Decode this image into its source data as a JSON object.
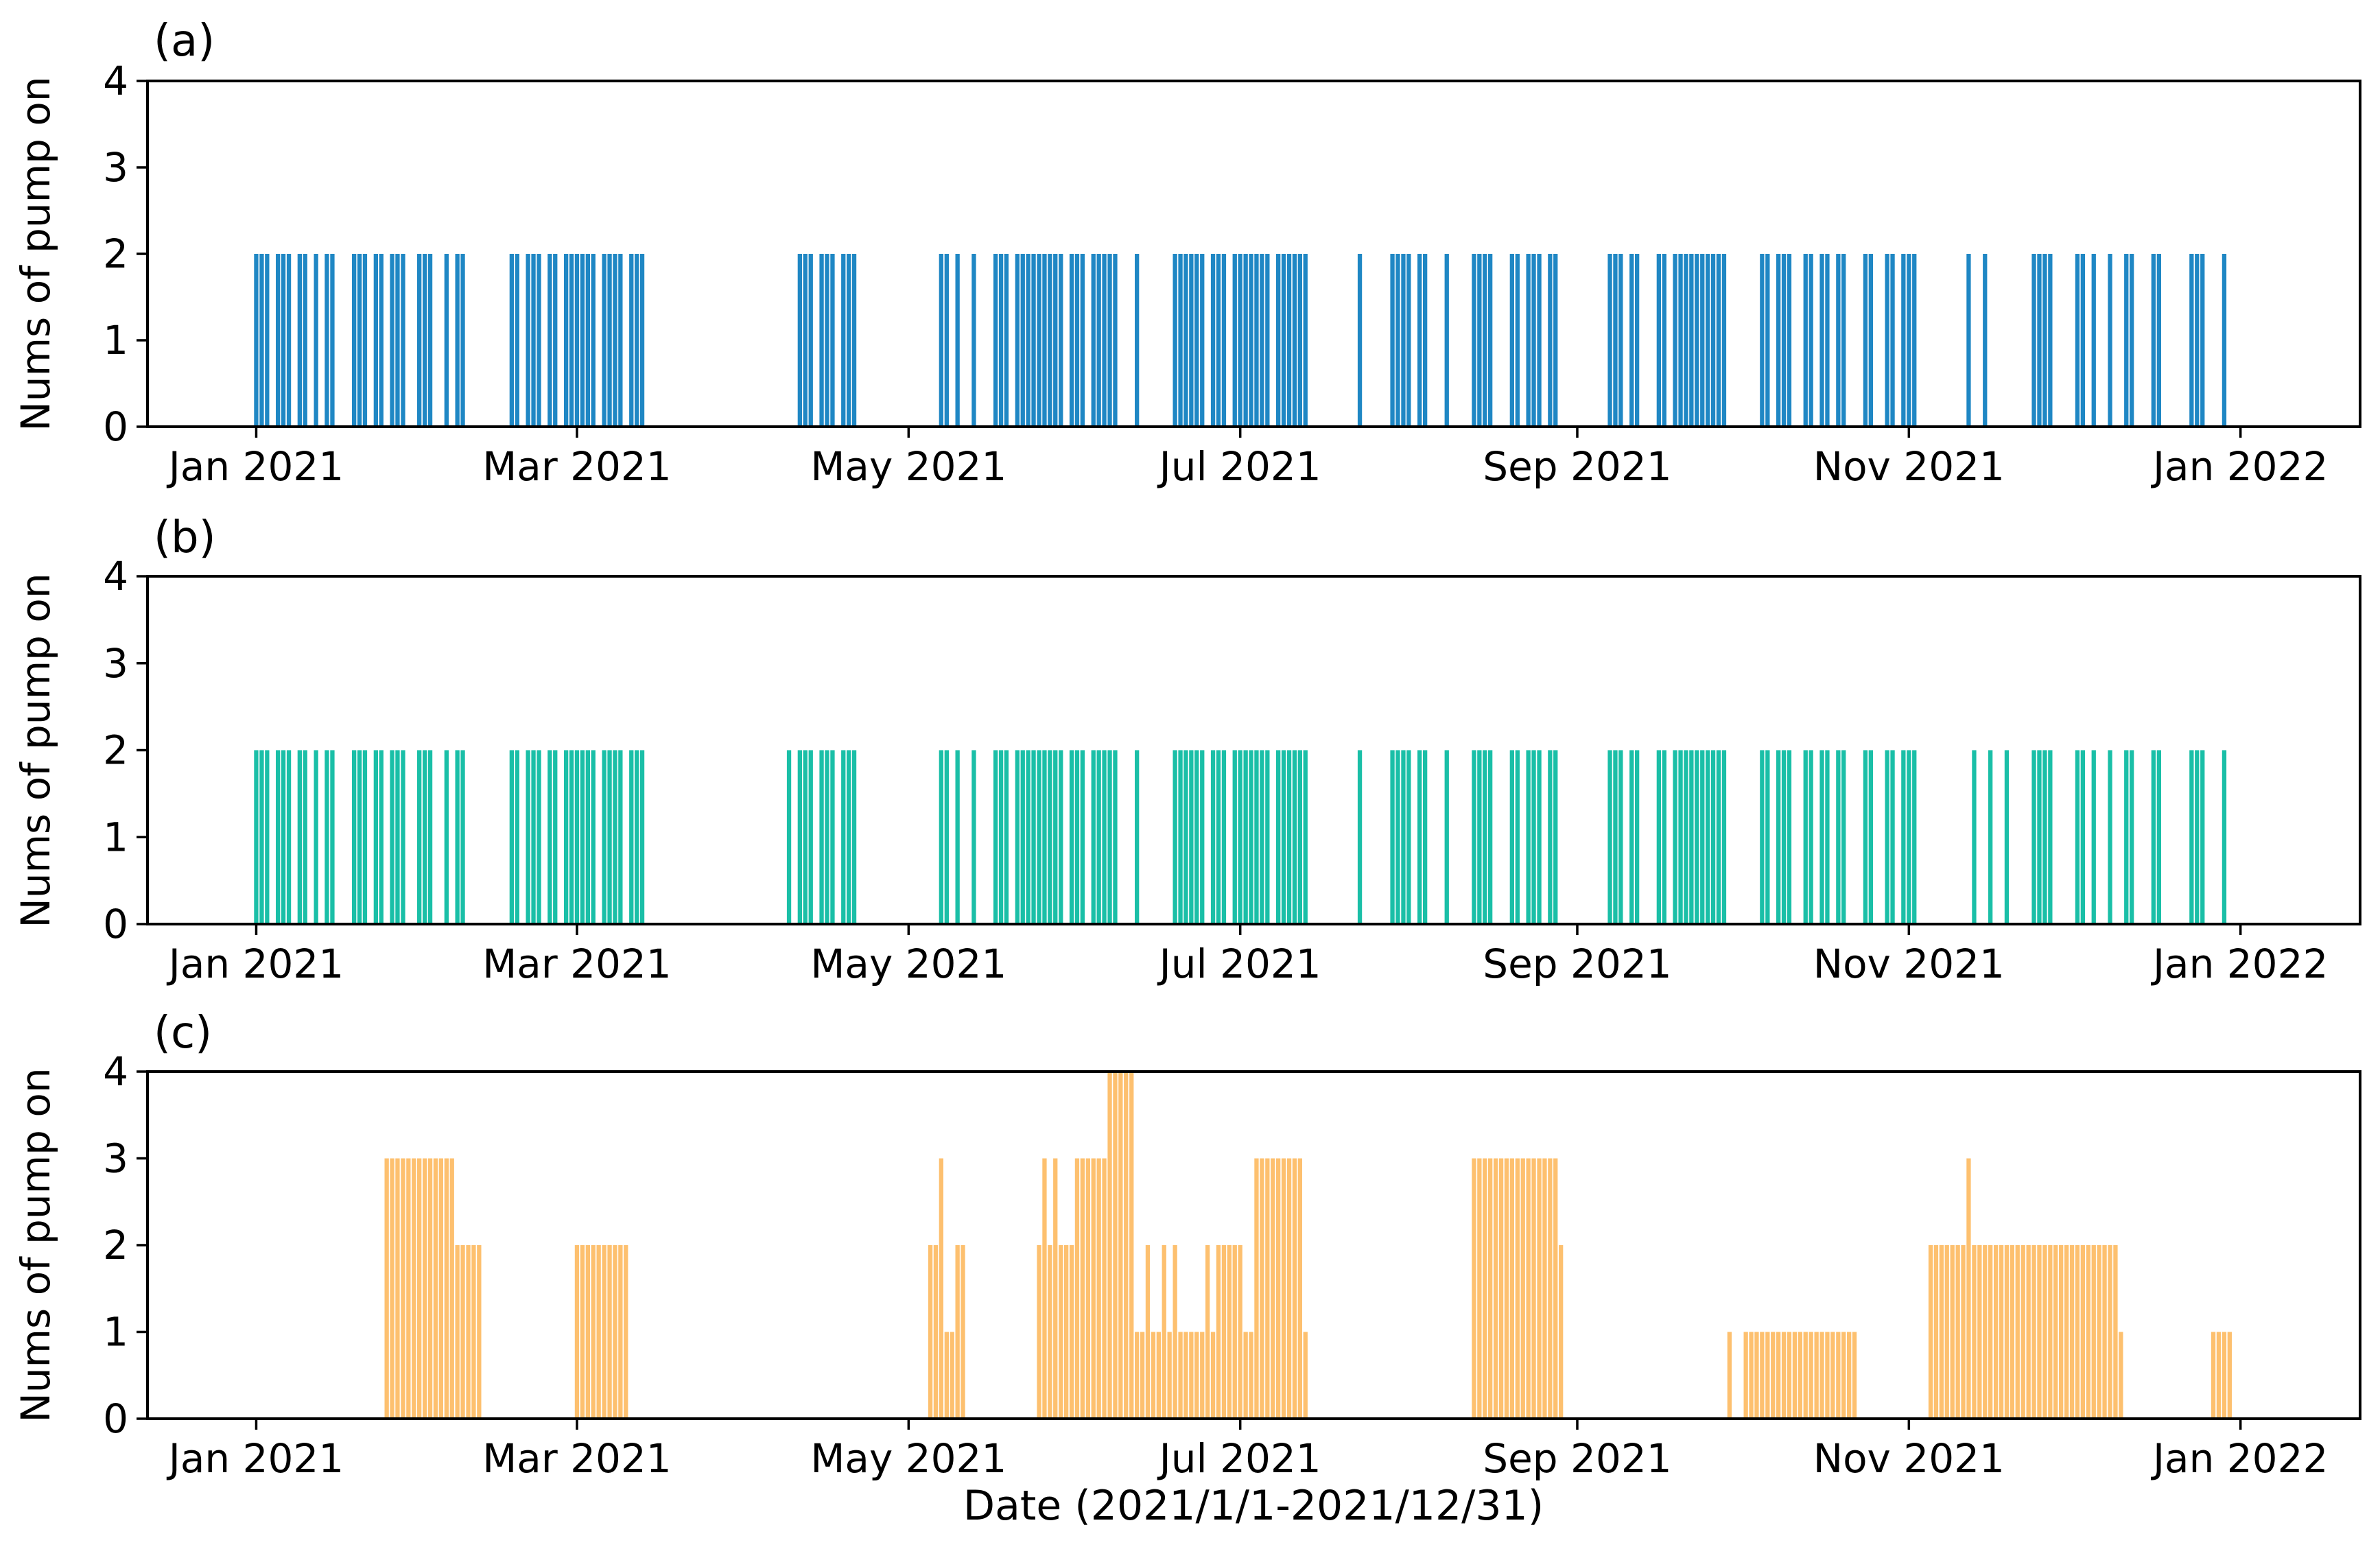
{
  "figure": {
    "ylabel": "Nums of pump on",
    "xlabel": "Date (2021/1/1-2021/12/31)",
    "background_color": "#ffffff",
    "axis_color": "#000000"
  },
  "chart_data": {
    "type": "bar",
    "x_unit": "day index of 2021 (0 = Jan 1, 2021)",
    "xlim_days": [
      -20,
      387
    ],
    "ylim": [
      0,
      4
    ],
    "y_ticks": [
      "0",
      "1",
      "2",
      "3",
      "4"
    ],
    "x_ticks": [
      {
        "day": 0,
        "label": "Jan 2021"
      },
      {
        "day": 59,
        "label": "Mar 2021"
      },
      {
        "day": 120,
        "label": "May 2021"
      },
      {
        "day": 181,
        "label": "Jul 2021"
      },
      {
        "day": 243,
        "label": "Sep 2021"
      },
      {
        "day": 304,
        "label": "Nov 2021"
      },
      {
        "day": 365,
        "label": "Jan 2022"
      }
    ],
    "grid": false,
    "legend": "none",
    "panels": [
      {
        "label": "(a)",
        "color": "#1f87c4",
        "ylabel": "Nums of pump on",
        "segments_format": "[start_day, end_day, value] inclusive",
        "segments": [
          [
            0,
            2,
            2
          ],
          [
            4,
            6,
            2
          ],
          [
            8,
            9,
            2
          ],
          [
            11,
            11,
            2
          ],
          [
            13,
            14,
            2
          ],
          [
            18,
            20,
            2
          ],
          [
            22,
            23,
            2
          ],
          [
            25,
            27,
            2
          ],
          [
            30,
            32,
            2
          ],
          [
            35,
            35,
            2
          ],
          [
            37,
            38,
            2
          ],
          [
            47,
            48,
            2
          ],
          [
            50,
            52,
            2
          ],
          [
            54,
            55,
            2
          ],
          [
            57,
            62,
            2
          ],
          [
            64,
            67,
            2
          ],
          [
            69,
            71,
            2
          ],
          [
            100,
            102,
            2
          ],
          [
            104,
            106,
            2
          ],
          [
            108,
            110,
            2
          ],
          [
            126,
            127,
            2
          ],
          [
            129,
            129,
            2
          ],
          [
            132,
            132,
            2
          ],
          [
            136,
            138,
            2
          ],
          [
            140,
            148,
            2
          ],
          [
            150,
            152,
            2
          ],
          [
            154,
            158,
            2
          ],
          [
            162,
            162,
            2
          ],
          [
            169,
            174,
            2
          ],
          [
            176,
            178,
            2
          ],
          [
            180,
            186,
            2
          ],
          [
            188,
            193,
            2
          ],
          [
            203,
            203,
            2
          ],
          [
            209,
            212,
            2
          ],
          [
            214,
            215,
            2
          ],
          [
            219,
            219,
            2
          ],
          [
            224,
            227,
            2
          ],
          [
            231,
            232,
            2
          ],
          [
            234,
            236,
            2
          ],
          [
            238,
            239,
            2
          ],
          [
            249,
            251,
            2
          ],
          [
            253,
            254,
            2
          ],
          [
            258,
            259,
            2
          ],
          [
            261,
            270,
            2
          ],
          [
            277,
            278,
            2
          ],
          [
            280,
            282,
            2
          ],
          [
            285,
            286,
            2
          ],
          [
            288,
            289,
            2
          ],
          [
            291,
            292,
            2
          ],
          [
            296,
            297,
            2
          ],
          [
            300,
            301,
            2
          ],
          [
            303,
            305,
            2
          ],
          [
            315,
            315,
            2
          ],
          [
            318,
            318,
            2
          ],
          [
            327,
            330,
            2
          ],
          [
            335,
            336,
            2
          ],
          [
            338,
            338,
            2
          ],
          [
            341,
            341,
            2
          ],
          [
            344,
            345,
            2
          ],
          [
            349,
            350,
            2
          ],
          [
            356,
            358,
            2
          ],
          [
            362,
            362,
            2
          ]
        ]
      },
      {
        "label": "(b)",
        "color": "#1abfa7",
        "ylabel": "Nums of pump on",
        "segments_format": "[start_day, end_day, value] inclusive",
        "segments": [
          [
            0,
            2,
            2
          ],
          [
            4,
            6,
            2
          ],
          [
            8,
            9,
            2
          ],
          [
            11,
            11,
            2
          ],
          [
            13,
            14,
            2
          ],
          [
            18,
            20,
            2
          ],
          [
            22,
            23,
            2
          ],
          [
            25,
            27,
            2
          ],
          [
            30,
            32,
            2
          ],
          [
            35,
            35,
            2
          ],
          [
            37,
            38,
            2
          ],
          [
            47,
            48,
            2
          ],
          [
            50,
            52,
            2
          ],
          [
            54,
            55,
            2
          ],
          [
            57,
            62,
            2
          ],
          [
            64,
            67,
            2
          ],
          [
            69,
            71,
            2
          ],
          [
            98,
            98,
            2
          ],
          [
            100,
            102,
            2
          ],
          [
            104,
            106,
            2
          ],
          [
            108,
            110,
            2
          ],
          [
            126,
            127,
            2
          ],
          [
            129,
            129,
            2
          ],
          [
            132,
            132,
            2
          ],
          [
            136,
            138,
            2
          ],
          [
            140,
            148,
            2
          ],
          [
            150,
            152,
            2
          ],
          [
            154,
            158,
            2
          ],
          [
            162,
            162,
            2
          ],
          [
            169,
            174,
            2
          ],
          [
            176,
            178,
            2
          ],
          [
            180,
            186,
            2
          ],
          [
            188,
            193,
            2
          ],
          [
            203,
            203,
            2
          ],
          [
            209,
            212,
            2
          ],
          [
            214,
            215,
            2
          ],
          [
            219,
            219,
            2
          ],
          [
            224,
            227,
            2
          ],
          [
            231,
            232,
            2
          ],
          [
            234,
            236,
            2
          ],
          [
            238,
            239,
            2
          ],
          [
            249,
            251,
            2
          ],
          [
            253,
            254,
            2
          ],
          [
            258,
            259,
            2
          ],
          [
            261,
            270,
            2
          ],
          [
            277,
            278,
            2
          ],
          [
            280,
            282,
            2
          ],
          [
            285,
            286,
            2
          ],
          [
            288,
            289,
            2
          ],
          [
            291,
            292,
            2
          ],
          [
            296,
            297,
            2
          ],
          [
            300,
            301,
            2
          ],
          [
            303,
            305,
            2
          ],
          [
            316,
            316,
            2
          ],
          [
            319,
            319,
            2
          ],
          [
            322,
            322,
            2
          ],
          [
            327,
            330,
            2
          ],
          [
            335,
            336,
            2
          ],
          [
            338,
            338,
            2
          ],
          [
            341,
            341,
            2
          ],
          [
            344,
            345,
            2
          ],
          [
            349,
            350,
            2
          ],
          [
            356,
            358,
            2
          ],
          [
            362,
            362,
            2
          ]
        ]
      },
      {
        "label": "(c)",
        "color": "#fdc06f",
        "ylabel": "Nums of pump on",
        "segments_format": "[start_day, end_day, value] inclusive",
        "segments": [
          [
            24,
            36,
            3
          ],
          [
            37,
            41,
            2
          ],
          [
            59,
            68,
            2
          ],
          [
            124,
            125,
            2
          ],
          [
            126,
            126,
            3
          ],
          [
            127,
            128,
            1
          ],
          [
            129,
            130,
            2
          ],
          [
            144,
            144,
            2
          ],
          [
            145,
            145,
            3
          ],
          [
            146,
            146,
            2
          ],
          [
            147,
            147,
            3
          ],
          [
            148,
            150,
            2
          ],
          [
            151,
            156,
            3
          ],
          [
            157,
            161,
            4
          ],
          [
            162,
            163,
            1
          ],
          [
            164,
            164,
            2
          ],
          [
            165,
            166,
            1
          ],
          [
            167,
            167,
            2
          ],
          [
            168,
            168,
            1
          ],
          [
            169,
            169,
            2
          ],
          [
            170,
            174,
            1
          ],
          [
            175,
            175,
            2
          ],
          [
            176,
            176,
            1
          ],
          [
            177,
            181,
            2
          ],
          [
            182,
            183,
            1
          ],
          [
            184,
            192,
            3
          ],
          [
            193,
            193,
            1
          ],
          [
            224,
            239,
            3
          ],
          [
            240,
            240,
            2
          ],
          [
            271,
            271,
            1
          ],
          [
            274,
            294,
            1
          ],
          [
            308,
            314,
            2
          ],
          [
            315,
            315,
            3
          ],
          [
            316,
            342,
            2
          ],
          [
            343,
            343,
            1
          ],
          [
            360,
            363,
            1
          ]
        ]
      }
    ]
  }
}
